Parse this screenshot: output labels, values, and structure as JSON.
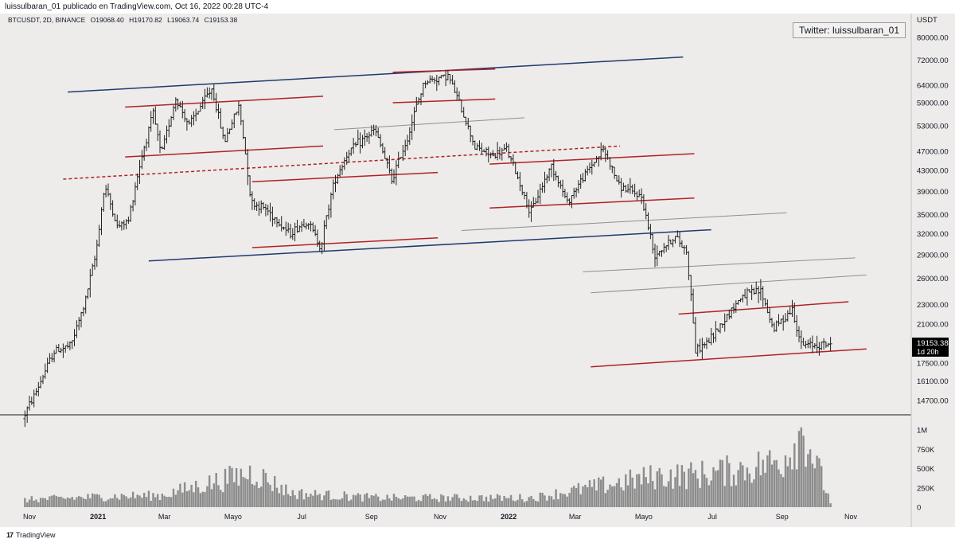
{
  "header": {
    "text": "luissulbaran_01 publicado en TradingView.com, Oct 16, 2022 00:28 UTC-4"
  },
  "legend": {
    "symbol": "BTCUSDT, 2D, BINANCE",
    "open": "O19068.40",
    "high": "H19170.82",
    "low": "L19063.74",
    "close": "C19153.38"
  },
  "watermark": "Twitter: luissulbaran_01",
  "footer": {
    "brand": "TradingView",
    "logo": "17"
  },
  "colors": {
    "background": "#edeceb",
    "candle": "#222222",
    "navy_trendline": "#1f3a6e",
    "red_trendline": "#b22222",
    "gray_trendline": "#8f8f8f",
    "price_tag": "#000000",
    "volume": "#8c8c8c"
  },
  "chart_data": {
    "type": "candlestick",
    "symbol": "BTCUSDT",
    "interval": "2D",
    "exchange": "BINANCE",
    "y_axis_title": "USDT",
    "y_scale": "log",
    "y_ticks": [
      80000,
      72000,
      64000,
      59000,
      53000,
      47000,
      43000,
      39000,
      35000,
      32000,
      29000,
      26000,
      23000,
      21000,
      19000,
      17500,
      16100,
      14700
    ],
    "y_tick_labels": [
      "80000.00",
      "72000.00",
      "64000.00",
      "59000.00",
      "53000.00",
      "47000.00",
      "43000.00",
      "39000.00",
      "35000.00",
      "32000.00",
      "29000.00",
      "26000.00",
      "23000.00",
      "21000.00",
      "19000.00",
      "17500.00",
      "16100.00",
      "14700.00"
    ],
    "x_ticks": [
      {
        "label": "Nov",
        "date": "2020-11-01"
      },
      {
        "label": "2021",
        "date": "2021-01-01"
      },
      {
        "label": "Mar",
        "date": "2021-03-01"
      },
      {
        "label": "Mayo",
        "date": "2021-05-01"
      },
      {
        "label": "Jul",
        "date": "2021-07-01"
      },
      {
        "label": "Sep",
        "date": "2021-09-01"
      },
      {
        "label": "Nov",
        "date": "2021-11-01"
      },
      {
        "label": "2022",
        "date": "2022-01-01"
      },
      {
        "label": "Mar",
        "date": "2022-03-01"
      },
      {
        "label": "Mayo",
        "date": "2022-05-01"
      },
      {
        "label": "Jul",
        "date": "2022-07-01"
      },
      {
        "label": "Sep",
        "date": "2022-09-01"
      },
      {
        "label": "Nov",
        "date": "2022-11-01"
      }
    ],
    "last_price": "19153.38",
    "countdown": "1d 20h",
    "price_path": [
      [
        "2020-10-28",
        13500
      ],
      [
        "2020-11-10",
        15500
      ],
      [
        "2020-11-25",
        18500
      ],
      [
        "2020-12-10",
        19000
      ],
      [
        "2020-12-22",
        23000
      ],
      [
        "2021-01-01",
        29000
      ],
      [
        "2021-01-09",
        40000
      ],
      [
        "2021-01-20",
        33000
      ],
      [
        "2021-01-30",
        34000
      ],
      [
        "2021-02-10",
        45000
      ],
      [
        "2021-02-21",
        56000
      ],
      [
        "2021-02-28",
        46000
      ],
      [
        "2021-03-13",
        60000
      ],
      [
        "2021-03-25",
        53000
      ],
      [
        "2021-04-14",
        63000
      ],
      [
        "2021-04-25",
        49000
      ],
      [
        "2021-05-08",
        58000
      ],
      [
        "2021-05-19",
        37000
      ],
      [
        "2021-06-01",
        36000
      ],
      [
        "2021-06-22",
        32000
      ],
      [
        "2021-07-08",
        34000
      ],
      [
        "2021-07-20",
        30000
      ],
      [
        "2021-08-01",
        41000
      ],
      [
        "2021-08-14",
        47000
      ],
      [
        "2021-09-06",
        52000
      ],
      [
        "2021-09-21",
        41000
      ],
      [
        "2021-10-05",
        50000
      ],
      [
        "2021-10-20",
        65000
      ],
      [
        "2021-11-10",
        67000
      ],
      [
        "2021-11-26",
        54000
      ],
      [
        "2021-12-04",
        48000
      ],
      [
        "2021-12-20",
        46000
      ],
      [
        "2022-01-01",
        47500
      ],
      [
        "2022-01-22",
        35000
      ],
      [
        "2022-02-10",
        44000
      ],
      [
        "2022-02-24",
        37000
      ],
      [
        "2022-03-28",
        47500
      ],
      [
        "2022-04-11",
        40000
      ],
      [
        "2022-05-01",
        38000
      ],
      [
        "2022-05-12",
        29000
      ],
      [
        "2022-05-31",
        31500
      ],
      [
        "2022-06-10",
        29500
      ],
      [
        "2022-06-18",
        18500
      ],
      [
        "2022-07-01",
        19500
      ],
      [
        "2022-07-30",
        24000
      ],
      [
        "2022-08-15",
        24500
      ],
      [
        "2022-08-26",
        20500
      ],
      [
        "2022-09-12",
        22500
      ],
      [
        "2022-09-20",
        19000
      ],
      [
        "2022-10-15",
        19153
      ]
    ],
    "volume_axis_ticks": [
      "1M",
      "750K",
      "500K",
      "250K",
      "0"
    ],
    "volume_path": [
      [
        "2020-10-28",
        95000
      ],
      [
        "2021-01-10",
        140000
      ],
      [
        "2021-02-25",
        150000
      ],
      [
        "2021-05-19",
        450000
      ],
      [
        "2021-06-22",
        180000
      ],
      [
        "2021-09-07",
        120000
      ],
      [
        "2022-01-22",
        120000
      ],
      [
        "2022-05-12",
        400000
      ],
      [
        "2022-06-18",
        420000
      ],
      [
        "2022-08-01",
        500000
      ],
      [
        "2022-09-01",
        600000
      ],
      [
        "2022-09-20",
        1000000
      ],
      [
        "2022-10-15",
        30000
      ]
    ],
    "trendlines": [
      {
        "color": "navy",
        "style": "solid",
        "points": [
          [
            "2020-12-05",
            62000
          ],
          [
            "2022-06-05",
            73000
          ]
        ]
      },
      {
        "color": "navy",
        "style": "solid",
        "points": [
          [
            "2021-02-15",
            28200
          ],
          [
            "2022-06-30",
            32600
          ]
        ]
      },
      {
        "color": "red",
        "style": "solid",
        "points": [
          [
            "2021-01-25",
            57800
          ],
          [
            "2021-07-20",
            60800
          ]
        ]
      },
      {
        "color": "red",
        "style": "solid",
        "points": [
          [
            "2021-01-25",
            45800
          ],
          [
            "2021-07-20",
            48200
          ]
        ]
      },
      {
        "color": "red",
        "style": "solid",
        "points": [
          [
            "2021-05-18",
            40800
          ],
          [
            "2021-10-30",
            42600
          ]
        ]
      },
      {
        "color": "red",
        "style": "solid",
        "points": [
          [
            "2021-05-18",
            30000
          ],
          [
            "2021-10-30",
            31400
          ]
        ]
      },
      {
        "color": "red",
        "style": "solid",
        "points": [
          [
            "2021-09-20",
            68000
          ],
          [
            "2021-12-20",
            69000
          ]
        ]
      },
      {
        "color": "red",
        "style": "solid",
        "points": [
          [
            "2021-09-20",
            59000
          ],
          [
            "2021-12-20",
            60000
          ]
        ]
      },
      {
        "color": "gray",
        "style": "solid",
        "points": [
          [
            "2021-07-30",
            52000
          ],
          [
            "2022-01-15",
            55000
          ]
        ]
      },
      {
        "color": "red",
        "style": "dashed",
        "points": [
          [
            "2020-12-01",
            41300
          ],
          [
            "2022-04-10",
            48200
          ]
        ]
      },
      {
        "color": "red",
        "style": "solid",
        "points": [
          [
            "2021-12-15",
            44300
          ],
          [
            "2022-06-15",
            46500
          ]
        ]
      },
      {
        "color": "red",
        "style": "solid",
        "points": [
          [
            "2021-12-15",
            36100
          ],
          [
            "2022-06-15",
            37800
          ]
        ]
      },
      {
        "color": "gray",
        "style": "solid",
        "points": [
          [
            "2021-11-20",
            32500
          ],
          [
            "2022-09-05",
            35300
          ]
        ]
      },
      {
        "color": "gray",
        "style": "solid",
        "points": [
          [
            "2022-03-08",
            26800
          ],
          [
            "2022-11-05",
            28600
          ]
        ]
      },
      {
        "color": "gray",
        "style": "solid",
        "points": [
          [
            "2022-03-15",
            24300
          ],
          [
            "2022-11-15",
            26400
          ]
        ]
      },
      {
        "color": "red",
        "style": "solid",
        "points": [
          [
            "2022-06-01",
            22000
          ],
          [
            "2022-10-30",
            23300
          ]
        ]
      },
      {
        "color": "red",
        "style": "solid",
        "points": [
          [
            "2022-03-15",
            17200
          ],
          [
            "2022-11-15",
            18700
          ]
        ]
      }
    ]
  }
}
